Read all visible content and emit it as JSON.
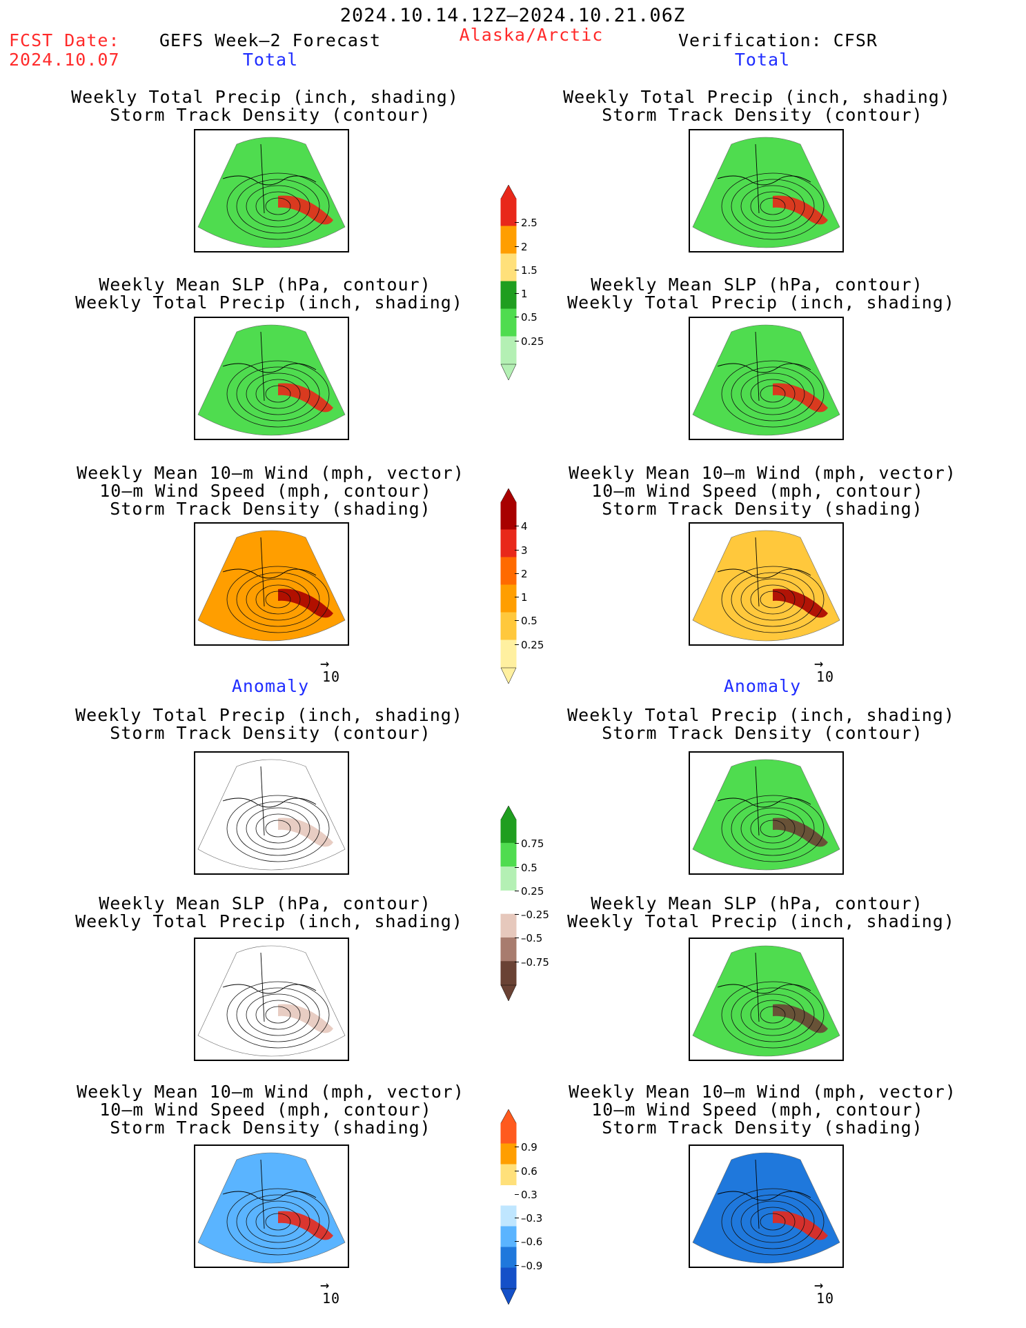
{
  "header": {
    "date_range": "2024.10.14.12Z–2024.10.21.06Z",
    "fcst_label": "FCST Date:",
    "fcst_date": "2024.10.07",
    "left_title": "GEFS Week–2 Forecast",
    "region": "Alaska/Arctic",
    "right_title": "Verification: CFSR"
  },
  "sections": {
    "total_left": "Total",
    "total_right": "Total",
    "anomaly_left": "Anomaly",
    "anomaly_right": "Anomaly"
  },
  "titles": {
    "precip_track": [
      "Weekly Total Precip (inch, shading)",
      "Storm Track Density (contour)"
    ],
    "slp_precip": [
      "Weekly Mean SLP (hPa, contour)",
      "Weekly Total Precip (inch, shading)"
    ],
    "wind_track": [
      "Weekly Mean 10–m Wind (mph, vector)",
      "10–m Wind Speed (mph, contour)",
      "Storm Track Density (shading)"
    ]
  },
  "vector_scale": "10",
  "colorbars": {
    "total_precip": {
      "labels": [
        "2.5",
        "2",
        "1.5",
        "1",
        "0.5",
        "0.25"
      ],
      "colors": [
        "#e8281a",
        "#ff9e00",
        "#ffe07a",
        "#1f9e1f",
        "#4fdc4f",
        "#b4f0b4"
      ]
    },
    "total_track": {
      "labels": [
        "4",
        "3",
        "2",
        "1",
        "0.5",
        "0.25"
      ],
      "colors": [
        "#a80000",
        "#e8281a",
        "#ff6a00",
        "#ff9e00",
        "#ffc83c",
        "#fff0a0"
      ]
    },
    "anom_precip": {
      "labels": [
        "0.75",
        "0.5",
        "0.25",
        "–0.25",
        "–0.5",
        "–0.75"
      ],
      "colors": [
        "#1f9e1f",
        "#4fdc4f",
        "#b4f0b4",
        "#ffffff",
        "#e6c8bc",
        "#a87c6e",
        "#6a4234"
      ]
    },
    "anom_track": {
      "labels": [
        "0.9",
        "0.6",
        "0.3",
        "–0.3",
        "–0.6",
        "–0.9"
      ],
      "colors": [
        "#ff5a1e",
        "#ff9e00",
        "#ffe07a",
        "#ffffff",
        "#bfe6ff",
        "#5ab4ff",
        "#1f78dc",
        "#1450c8"
      ]
    }
  },
  "panels": {
    "l1": {
      "fill": "#4fdc4f",
      "accent": "#e8281a"
    },
    "l2": {
      "fill": "#4fdc4f",
      "accent": "#e8281a"
    },
    "l3": {
      "fill": "#ff9e00",
      "accent": "#a80000"
    },
    "l4": {
      "fill": "#ffffff",
      "accent": "#e6c8bc"
    },
    "l5": {
      "fill": "#ffffff",
      "accent": "#e6c8bc"
    },
    "l6": {
      "fill": "#5ab4ff",
      "accent": "#e8281a"
    },
    "r1": {
      "fill": "#4fdc4f",
      "accent": "#e8281a"
    },
    "r2": {
      "fill": "#4fdc4f",
      "accent": "#e8281a"
    },
    "r3": {
      "fill": "#ffc83c",
      "accent": "#a80000"
    },
    "r4": {
      "fill": "#4fdc4f",
      "accent": "#6a4234"
    },
    "r5": {
      "fill": "#4fdc4f",
      "accent": "#6a4234"
    },
    "r6": {
      "fill": "#1f78dc",
      "accent": "#e8281a"
    }
  }
}
